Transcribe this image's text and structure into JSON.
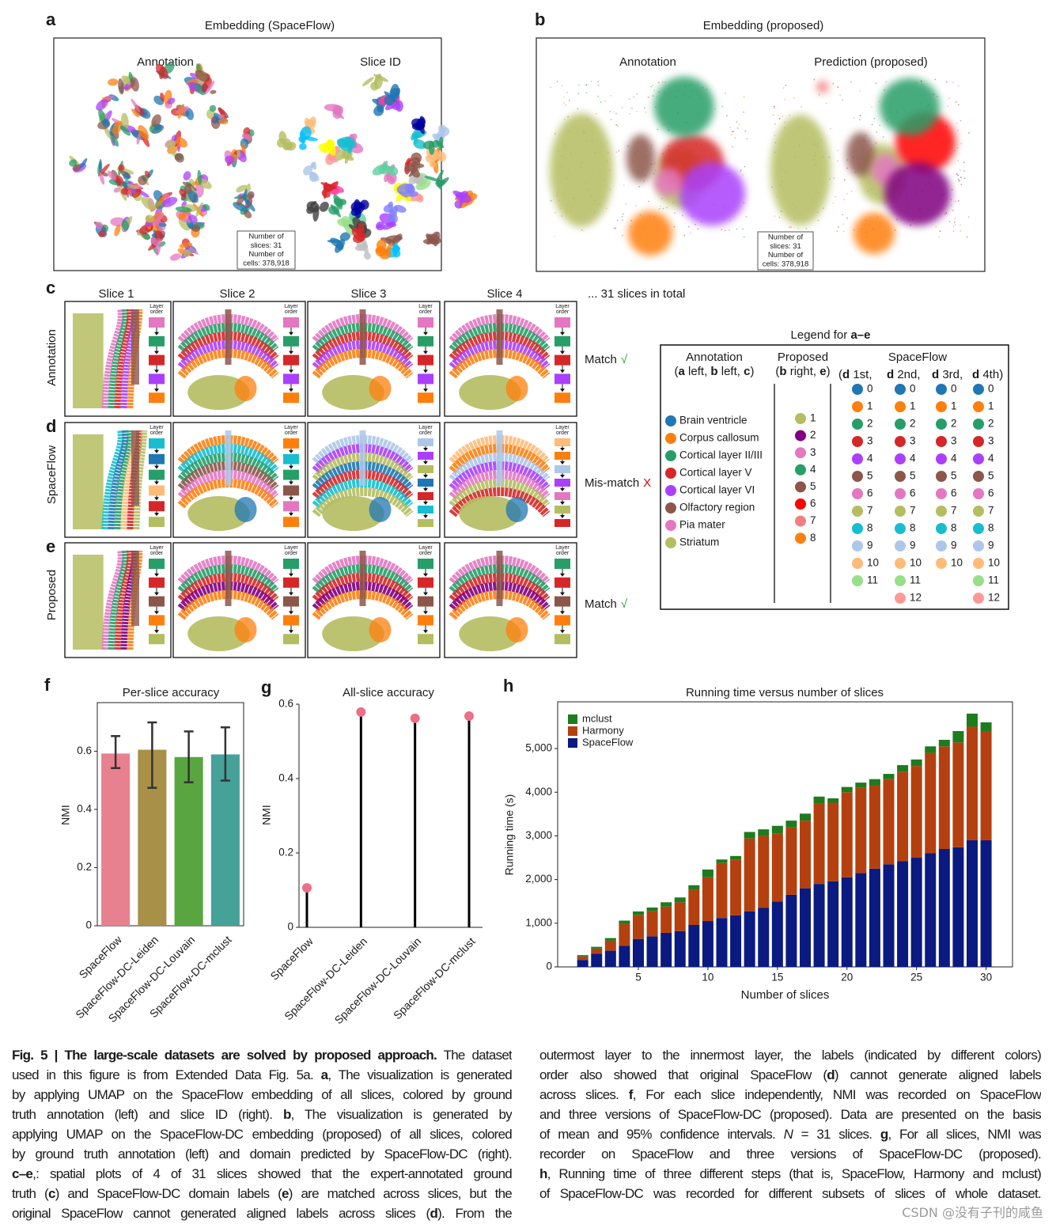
{
  "panel_a": {
    "letter": "a",
    "title": "Embedding (SpaceFlow)",
    "left_title": "Annotation",
    "right_title": "Slice ID",
    "note": [
      "Number of",
      "slices: 31",
      "Number of",
      "cells: 378,918"
    ]
  },
  "panel_b": {
    "letter": "b",
    "title": "Embedding (proposed)",
    "left_title": "Annotation",
    "right_title": "Prediction (proposed)",
    "note": [
      "Number of",
      "slices: 31",
      "Number of",
      "cells: 378,918"
    ]
  },
  "panel_cde": {
    "letters": [
      "c",
      "d",
      "e"
    ],
    "slices": [
      "Slice 1",
      "Slice 2",
      "Slice 3",
      "Slice 4"
    ],
    "more": "... 31 slices in total",
    "layer_order": [
      "Layer",
      "order"
    ],
    "rows": [
      {
        "label": "Annotation",
        "result": "Match",
        "symbol": "√"
      },
      {
        "label": "SpaceFlow",
        "result": "Mis-match",
        "symbol": "X"
      },
      {
        "label": "Proposed",
        "result": "Match",
        "symbol": "√"
      }
    ]
  },
  "legend": {
    "title": [
      "Legend for ",
      {
        "text": "a–e",
        "bold": true
      }
    ],
    "annotation": {
      "header": [
        [
          "Annotation"
        ],
        [
          "(",
          {
            "text": "a",
            "bold": true
          },
          " left, ",
          {
            "text": "b",
            "bold": true
          },
          " left, ",
          {
            "text": "c",
            "bold": true
          },
          ")"
        ]
      ],
      "items": [
        {
          "name": "Brain ventricle",
          "color": "#1f77b4"
        },
        {
          "name": "Corpus callosum",
          "color": "#ff7f0e"
        },
        {
          "name": "Cortical layer II/III",
          "color": "#279e68"
        },
        {
          "name": "Cortical layer V",
          "color": "#d62728"
        },
        {
          "name": "Cortical layer VI",
          "color": "#aa40fc"
        },
        {
          "name": "Olfactory region",
          "color": "#8c564b"
        },
        {
          "name": "Pia mater",
          "color": "#e377c2"
        },
        {
          "name": "Striatum",
          "color": "#b5bd61"
        }
      ]
    },
    "proposed": {
      "header": [
        [
          "Proposed"
        ],
        [
          "(",
          {
            "text": "b",
            "bold": true
          },
          " right, ",
          {
            "text": "e",
            "bold": true
          },
          ")"
        ]
      ],
      "items": [
        {
          "label": 1,
          "color": "#b5bd61"
        },
        {
          "label": 2,
          "color": "#800080"
        },
        {
          "label": 3,
          "color": "#e377c2"
        },
        {
          "label": 4,
          "color": "#279e68"
        },
        {
          "label": 5,
          "color": "#8c564b"
        },
        {
          "label": 6,
          "color": "#ff0000"
        },
        {
          "label": 7,
          "color": "#f08080"
        },
        {
          "label": 8,
          "color": "#ff7f0e"
        }
      ]
    },
    "spaceflow": {
      "header": "SpaceFlow",
      "palette": [
        "#1f77b4",
        "#ff7f0e",
        "#279e68",
        "#d62728",
        "#aa40fc",
        "#8c564b",
        "#e377c2",
        "#b5bd61",
        "#17becf",
        "#aec7e8",
        "#ffbb78",
        "#98df8a",
        "#ff9896"
      ],
      "columns": [
        {
          "header": [
            "(",
            {
              "text": "d",
              "bold": true
            },
            " 1st,"
          ],
          "labels": [
            0,
            1,
            2,
            3,
            4,
            5,
            6,
            7,
            8,
            9,
            10,
            11
          ]
        },
        {
          "header": [
            {
              "text": "d",
              "bold": true
            },
            " 2nd,"
          ],
          "labels": [
            0,
            1,
            2,
            3,
            4,
            5,
            6,
            7,
            8,
            9,
            10,
            11,
            12
          ]
        },
        {
          "header": [
            {
              "text": "d",
              "bold": true
            },
            " 3rd,"
          ],
          "labels": [
            0,
            1,
            2,
            3,
            4,
            5,
            6,
            7,
            8,
            9,
            10
          ]
        },
        {
          "header": [
            {
              "text": "d",
              "bold": true
            },
            " 4th)"
          ],
          "labels": [
            0,
            1,
            2,
            3,
            4,
            5,
            6,
            7,
            8,
            9,
            10,
            11,
            12
          ]
        }
      ]
    }
  },
  "chart_data": [
    {
      "type": "bar",
      "panel": "f",
      "title": "Per-slice accuracy",
      "y_label": "NMI",
      "categories": [
        "SpaceFlow",
        "SpaceFlow-DC-Leiden",
        "SpaceFlow-DC-Louvain",
        "SpaceFlow-DC-mclust"
      ],
      "values": [
        0.592,
        0.605,
        0.58,
        0.589
      ],
      "ci_low": [
        0.542,
        0.474,
        0.493,
        0.499
      ],
      "ci_high": [
        0.652,
        0.699,
        0.668,
        0.682
      ],
      "colors": [
        "#e8818f",
        "#a89048",
        "#59a641",
        "#46a199"
      ],
      "ylim": [
        0,
        0.767
      ],
      "yticks": [
        0,
        0.2,
        0.4,
        0.6
      ]
    },
    {
      "type": "lollipop",
      "panel": "g",
      "title": "All-slice accuracy",
      "y_label": "NMI",
      "categories": [
        "SpaceFlow",
        "SpaceFlow-DC-Leiden",
        "SpaceFlow-DC-Louvain",
        "SpaceFlow-DC-mclust"
      ],
      "values": [
        0.106,
        0.579,
        0.562,
        0.568
      ],
      "color": "#ec6f85",
      "ylim": [
        0,
        0.6
      ],
      "yticks": [
        0,
        0.2,
        0.4,
        0.6
      ]
    },
    {
      "type": "bar",
      "stacked": true,
      "panel": "h",
      "title": "Running time versus number of slices",
      "x_label": "Number of slices",
      "y_label": "Running time (s)",
      "legend": "upper left",
      "x": [
        1,
        2,
        3,
        4,
        5,
        6,
        7,
        8,
        9,
        10,
        11,
        12,
        13,
        14,
        15,
        16,
        17,
        18,
        19,
        20,
        21,
        22,
        23,
        24,
        25,
        26,
        27,
        28,
        29,
        30
      ],
      "series": [
        {
          "name": "mclust",
          "color": "#1e7b1e",
          "values": [
            30,
            40,
            60,
            80,
            80,
            80,
            100,
            110,
            110,
            180,
            80,
            80,
            150,
            150,
            180,
            150,
            160,
            150,
            100,
            120,
            120,
            150,
            120,
            150,
            150,
            150,
            150,
            260,
            300,
            200
          ]
        },
        {
          "name": "Harmony",
          "color": "#b5400f",
          "values": [
            80,
            120,
            230,
            500,
            550,
            580,
            600,
            660,
            800,
            1000,
            1260,
            1280,
            1670,
            1650,
            1550,
            1550,
            1550,
            1850,
            1800,
            1950,
            1950,
            1900,
            1950,
            2050,
            2100,
            2300,
            2350,
            2400,
            2600,
            2500
          ]
        },
        {
          "name": "SpaceFlow",
          "color": "#0a1a80",
          "values": [
            160,
            300,
            370,
            480,
            640,
            700,
            780,
            820,
            960,
            1050,
            1120,
            1180,
            1270,
            1350,
            1500,
            1650,
            1800,
            1900,
            1960,
            2050,
            2150,
            2250,
            2350,
            2420,
            2500,
            2600,
            2700,
            2740,
            2900,
            2900
          ]
        }
      ],
      "xlim": [
        -0.8,
        31.9
      ],
      "xticks": [
        5,
        10,
        15,
        20,
        25,
        30
      ],
      "ylim": [
        0,
        6070
      ],
      "yticks": [
        0,
        {
          "value": 1000,
          "label": "1,000"
        },
        {
          "value": 2000,
          "label": "2,000"
        },
        {
          "value": 3000,
          "label": "3,000"
        },
        {
          "value": 4000,
          "label": "4,000"
        },
        {
          "value": 5000,
          "label": "5,000"
        }
      ]
    }
  ],
  "caption": {
    "left": [
      [
        {
          "text": "Fig. 5 | The large-scale datasets are solved by proposed approach.",
          "bold": true
        },
        " The dataset"
      ],
      [
        "used in this figure is from Extended Data Fig. 5a. ",
        {
          "text": "a",
          "bold": true
        },
        ", The visualization is generated"
      ],
      [
        "by applying UMAP on the SpaceFlow embedding of all slices, colored by ground"
      ],
      [
        "truth annotation (left) and slice ID (right). ",
        {
          "text": "b",
          "bold": true
        },
        ", The visualization is generated by"
      ],
      [
        "applying UMAP on the SpaceFlow-DC embedding (proposed) of all slices, colored"
      ],
      [
        "by ground truth annotation (left) and domain predicted by SpaceFlow-DC (right)."
      ],
      [
        {
          "text": "c–e",
          "bold": true
        },
        ",: spatial plots of 4 of 31 slices showed that the expert-annotated ground"
      ],
      [
        "truth (",
        {
          "text": "c",
          "bold": true
        },
        ") and SpaceFlow-DC domain labels (",
        {
          "text": "e",
          "bold": true
        },
        ") are matched across slices, but the"
      ],
      [
        "original SpaceFlow cannot generated aligned labels across slices (",
        {
          "text": "d",
          "bold": true
        },
        "). From the"
      ]
    ],
    "right": [
      [
        "outermost layer to the innermost layer, the labels (indicated by different colors)"
      ],
      [
        "order also showed that original SpaceFlow (",
        {
          "text": "d",
          "bold": true
        },
        ") cannot generate aligned labels"
      ],
      [
        "across slices. ",
        {
          "text": "f",
          "bold": true
        },
        ", For each slice independently, NMI was recorded on SpaceFlow"
      ],
      [
        "and three versions of SpaceFlow-DC (proposed). Data are presented on the basis"
      ],
      [
        "of mean and 95% confidence intervals. ",
        {
          "text": "N",
          "italic": true
        },
        " = 31 slices. ",
        {
          "text": "g",
          "bold": true
        },
        ", For all slices, NMI was"
      ],
      [
        "recorder on SpaceFlow and three versions of SpaceFlow-DC (proposed)."
      ],
      [
        {
          "text": "h",
          "bold": true
        },
        ", Running time of three different steps (that is, SpaceFlow, Harmony and mclust)"
      ],
      [
        "of SpaceFlow-DC was recorded for different subsets of slices of whole dataset."
      ]
    ]
  },
  "watermark": "CSDN @没有子刊的咸鱼"
}
